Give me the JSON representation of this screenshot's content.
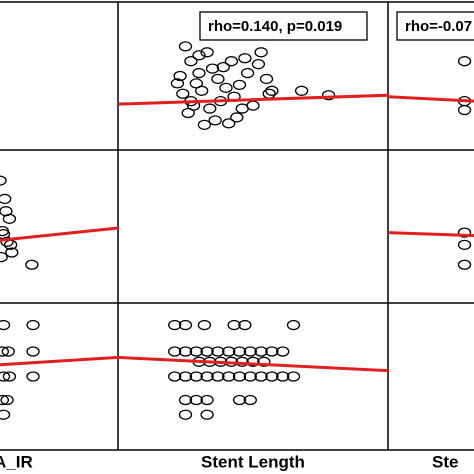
{
  "chart_data": [
    {
      "type": "scatter",
      "xlim": [
        0,
        100
      ],
      "ylim": [
        0,
        100
      ],
      "x": [],
      "y": [],
      "fit_x": [],
      "fit_y": []
    },
    {
      "type": "scatter",
      "xlim": [
        0,
        100
      ],
      "ylim": [
        0,
        100
      ],
      "annotation": "rho=0.140, p=0.019",
      "x": [
        25,
        27,
        30,
        23,
        33,
        35,
        29,
        24,
        31,
        37,
        40,
        28,
        26,
        34,
        38,
        43,
        45,
        48,
        52,
        55,
        57,
        50,
        44,
        41,
        36,
        32,
        27,
        47,
        53,
        56,
        39,
        42,
        30,
        46,
        78,
        68,
        22
      ],
      "y": [
        70,
        60,
        64,
        50,
        66,
        55,
        45,
        38,
        40,
        48,
        42,
        30,
        25,
        28,
        33,
        36,
        44,
        52,
        58,
        48,
        40,
        30,
        22,
        18,
        20,
        17,
        33,
        62,
        66,
        38,
        56,
        60,
        52,
        28,
        37,
        40,
        45
      ],
      "fit_x": [
        0,
        100
      ],
      "fit_y": [
        31,
        37
      ]
    },
    {
      "type": "scatter",
      "xlim": [
        0,
        100
      ],
      "ylim": [
        0,
        100
      ],
      "annotation": "rho=-0.07",
      "x": [
        89,
        89,
        89
      ],
      "y": [
        60,
        33,
        27
      ],
      "fit_x": [
        0,
        100
      ],
      "fit_y": [
        36,
        33
      ]
    },
    {
      "type": "scatter",
      "xlim": [
        0,
        100
      ],
      "ylim": [
        0,
        100
      ],
      "x": [
        0,
        4,
        8,
        2,
        6,
        10,
        3,
        27,
        5,
        9,
        1
      ],
      "y": [
        80,
        68,
        55,
        47,
        40,
        33,
        45,
        25,
        60,
        38,
        30
      ],
      "fit_x": [
        0,
        100
      ],
      "fit_y": [
        41,
        49
      ]
    },
    {
      "type": "scatter",
      "xlim": [
        0,
        100
      ],
      "ylim": [
        0,
        100
      ],
      "x": [],
      "y": [],
      "fit_x": [],
      "fit_y": []
    },
    {
      "type": "scatter",
      "xlim": [
        0,
        100
      ],
      "ylim": [
        0,
        100
      ],
      "x": [
        89,
        89,
        89
      ],
      "y": [
        46,
        38,
        25
      ],
      "fit_x": [
        0,
        100
      ],
      "fit_y": [
        46,
        44
      ]
    },
    {
      "type": "scatter",
      "xlim": [
        0,
        100
      ],
      "ylim": [
        0,
        100
      ],
      "x": [
        3,
        28,
        2,
        7,
        28,
        3,
        8,
        28,
        2,
        6,
        3
      ],
      "y": [
        85,
        85,
        67,
        67,
        67,
        50,
        50,
        50,
        34,
        34,
        24
      ],
      "fit_x": [
        0,
        100
      ],
      "fit_y": [
        58,
        63
      ]
    },
    {
      "type": "scatter",
      "xlim": [
        0,
        100
      ],
      "ylim": [
        0,
        100
      ],
      "x": [
        21,
        25,
        32,
        43,
        47,
        65,
        21,
        25,
        29,
        33,
        37,
        41,
        45,
        49,
        53,
        57,
        61,
        30,
        34,
        38,
        42,
        46,
        50,
        54,
        21,
        25,
        29,
        33,
        37,
        41,
        45,
        49,
        53,
        57,
        61,
        65,
        25,
        29,
        33,
        45,
        49,
        25,
        33
      ],
      "y": [
        85,
        85,
        85,
        85,
        85,
        85,
        67,
        67,
        67,
        67,
        67,
        67,
        67,
        67,
        67,
        67,
        67,
        60,
        60,
        60,
        60,
        60,
        60,
        60,
        50,
        50,
        50,
        50,
        50,
        50,
        50,
        50,
        50,
        50,
        50,
        50,
        34,
        34,
        34,
        34,
        34,
        24,
        24
      ],
      "fit_x": [
        0,
        100
      ],
      "fit_y": [
        63,
        54
      ]
    },
    {
      "type": "scatter",
      "xlim": [
        0,
        100
      ],
      "ylim": [
        0,
        100
      ],
      "x": [],
      "y": [],
      "fit_x": [],
      "fit_y": []
    }
  ],
  "axis_labels": [
    "A_IR",
    "Stent Length",
    "Ste"
  ]
}
